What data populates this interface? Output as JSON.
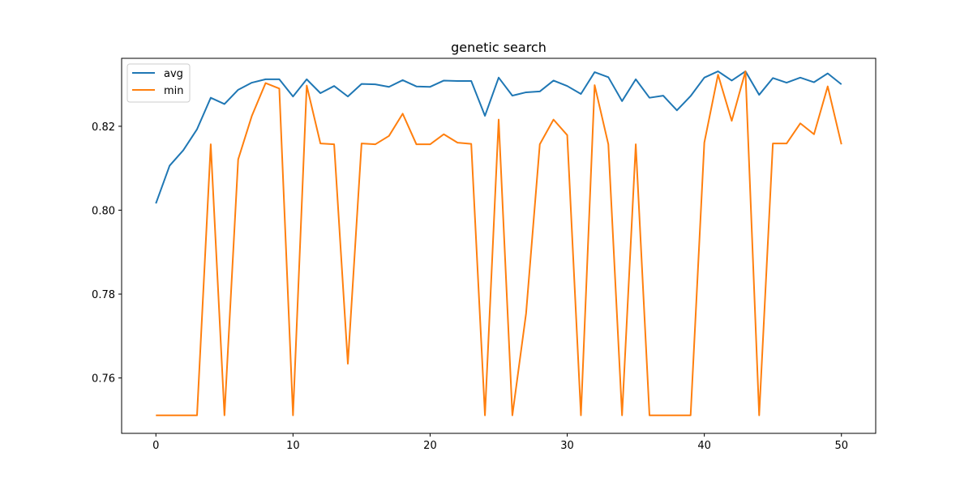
{
  "chart_data": {
    "type": "line",
    "title": "genetic search",
    "xlabel": "",
    "ylabel": "",
    "xlim": [
      -2.5,
      52.5
    ],
    "ylim": [
      0.7468,
      0.8362
    ],
    "xticks": [
      0,
      10,
      20,
      30,
      40,
      50
    ],
    "xtick_labels": [
      "0",
      "10",
      "20",
      "30",
      "40",
      "50"
    ],
    "yticks": [
      0.76,
      0.78,
      0.8,
      0.82
    ],
    "ytick_labels": [
      "0.76",
      "0.78",
      "0.80",
      "0.82"
    ],
    "grid": false,
    "legend": "upper-left",
    "x": [
      0,
      1,
      2,
      3,
      4,
      5,
      6,
      7,
      8,
      9,
      10,
      11,
      12,
      13,
      14,
      15,
      16,
      17,
      18,
      19,
      20,
      21,
      22,
      23,
      24,
      25,
      26,
      27,
      28,
      29,
      30,
      31,
      32,
      33,
      34,
      35,
      36,
      37,
      38,
      39,
      40,
      41,
      42,
      43,
      44,
      45,
      46,
      47,
      48,
      49,
      50
    ],
    "series": [
      {
        "name": "avg",
        "color": "#1f77b4",
        "values": [
          0.8016,
          0.8106,
          0.8143,
          0.8193,
          0.8268,
          0.8253,
          0.8287,
          0.8304,
          0.8312,
          0.8312,
          0.8271,
          0.8312,
          0.8279,
          0.8296,
          0.8271,
          0.8301,
          0.83,
          0.8294,
          0.831,
          0.8295,
          0.8294,
          0.8309,
          0.8308,
          0.8308,
          0.8225,
          0.8316,
          0.8273,
          0.8281,
          0.8283,
          0.8309,
          0.8296,
          0.8277,
          0.8329,
          0.8317,
          0.826,
          0.8312,
          0.8268,
          0.8273,
          0.8238,
          0.8272,
          0.8316,
          0.8331,
          0.8309,
          0.8331,
          0.8275,
          0.8315,
          0.8304,
          0.8316,
          0.8305,
          0.8326,
          0.83
        ]
      },
      {
        "name": "min",
        "color": "#ff7f0e",
        "values": [
          0.7511,
          0.7511,
          0.7511,
          0.7511,
          0.8157,
          0.7511,
          0.8121,
          0.8225,
          0.8303,
          0.829,
          0.7511,
          0.8297,
          0.8159,
          0.8157,
          0.7634,
          0.8159,
          0.8157,
          0.8177,
          0.823,
          0.8157,
          0.8157,
          0.8181,
          0.8161,
          0.8158,
          0.7511,
          0.8216,
          0.7511,
          0.7754,
          0.8157,
          0.8216,
          0.8179,
          0.7511,
          0.8298,
          0.8157,
          0.7511,
          0.8157,
          0.7511,
          0.7511,
          0.7511,
          0.7511,
          0.8161,
          0.8323,
          0.8213,
          0.8331,
          0.7511,
          0.8159,
          0.8159,
          0.8207,
          0.8181,
          0.8295,
          0.8157
        ]
      }
    ]
  }
}
